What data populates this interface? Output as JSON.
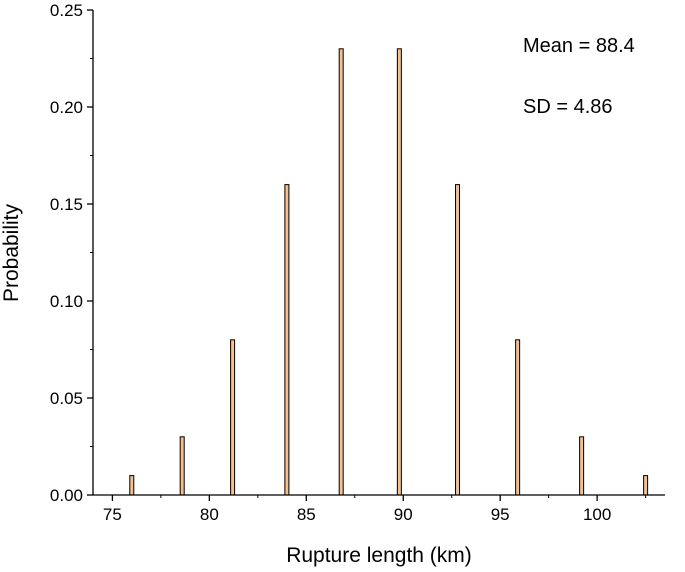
{
  "chart_data": {
    "type": "bar",
    "title": "",
    "xlabel": "Rupture length (km)",
    "ylabel": "Probability",
    "xlim": [
      74,
      103.5
    ],
    "ylim": [
      0,
      0.25
    ],
    "x": [
      76.0,
      78.6,
      81.2,
      84.0,
      86.8,
      89.8,
      92.8,
      95.9,
      99.2,
      102.5
    ],
    "values": [
      0.01,
      0.03,
      0.08,
      0.16,
      0.23,
      0.23,
      0.16,
      0.08,
      0.03,
      0.01
    ],
    "x_ticks": [
      "75",
      "80",
      "85",
      "90",
      "95",
      "100"
    ],
    "y_ticks": [
      "0.00",
      "0.05",
      "0.10",
      "0.15",
      "0.20",
      "0.25"
    ],
    "annotations": [
      "Mean = 88.4",
      "SD = 4.86"
    ],
    "grid": false,
    "bar_fill": "#f5c08e",
    "bar_edge": "#000000"
  }
}
